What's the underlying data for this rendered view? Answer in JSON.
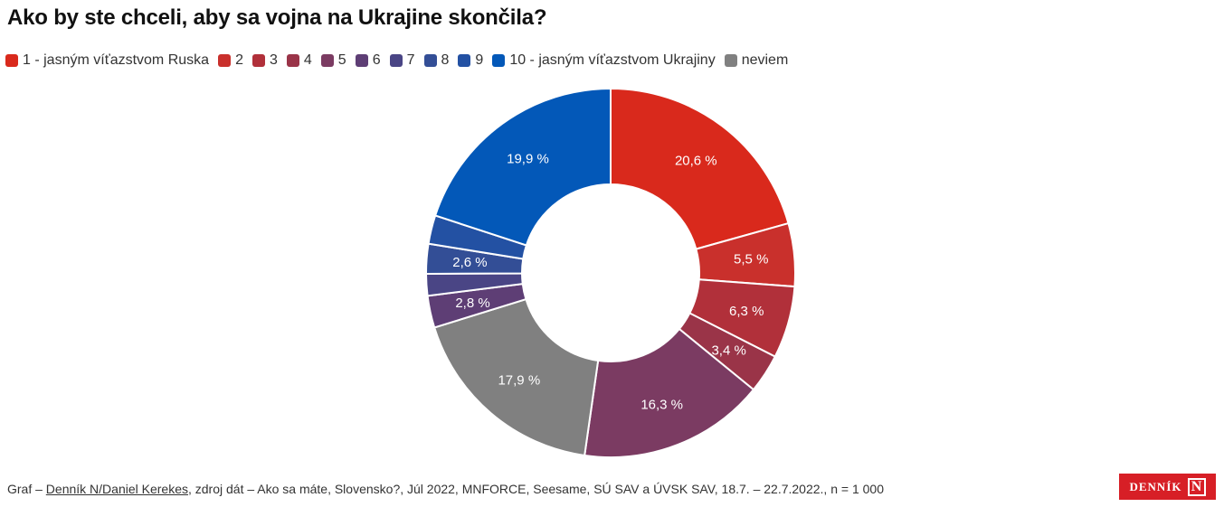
{
  "title": "Ako by ste chceli, aby sa vojna na Ukrajine skončila?",
  "legend": [
    {
      "label": "1 - jasným víťazstvom Ruska",
      "color": "#d9291c"
    },
    {
      "label": "2",
      "color": "#c9302c"
    },
    {
      "label": "3",
      "color": "#b1303a"
    },
    {
      "label": "4",
      "color": "#9a3448"
    },
    {
      "label": "5",
      "color": "#7b3b62"
    },
    {
      "label": "6",
      "color": "#5e3e75"
    },
    {
      "label": "7",
      "color": "#4a4585"
    },
    {
      "label": "8",
      "color": "#334e96"
    },
    {
      "label": "9",
      "color": "#2351a3"
    },
    {
      "label": "10 - jasným víťazstvom Ukrajiny",
      "color": "#0358b8"
    },
    {
      "label": "neviem",
      "color": "#808080"
    }
  ],
  "chart_data": {
    "type": "pie",
    "donut": true,
    "title": "Ako by ste chceli, aby sa vojna na Ukrajine skončila?",
    "categories": [
      "1 - jasným víťazstvom Ruska",
      "2",
      "3",
      "4",
      "5",
      "6",
      "7",
      "8",
      "9",
      "10 - jasným víťazstvom Ukrajiny",
      "neviem"
    ],
    "values": [
      20.6,
      5.5,
      6.3,
      3.4,
      16.3,
      2.8,
      1.9,
      2.6,
      2.5,
      19.9,
      17.9
    ],
    "data_labels": [
      "20,6 %",
      "5,5 %",
      "6,3 %",
      "3,4 %",
      "16,3 %",
      "2,8 %",
      "",
      "2,6 %",
      "",
      "19,9 %",
      "17,9 %"
    ],
    "colors": [
      "#d9291c",
      "#c9302c",
      "#b1303a",
      "#9a3448",
      "#7b3b62",
      "#5e3e75",
      "#4a4585",
      "#334e96",
      "#2351a3",
      "#0358b8",
      "#808080"
    ],
    "order": [
      0,
      1,
      2,
      3,
      4,
      10,
      5,
      6,
      7,
      8,
      9
    ],
    "legend_position": "top"
  },
  "footer": {
    "prefix": "Graf – ",
    "author_link": "Denník N/Daniel Kerekes",
    "source": ", zdroj dát – Ako sa máte, Slovensko?, Júl 2022, MNFORCE, Seesame, SÚ SAV a ÚVSK SAV, 18.7. – 22.7.2022., n = 1 000"
  },
  "logo": {
    "text": "DENNÍK",
    "mark": "N"
  }
}
